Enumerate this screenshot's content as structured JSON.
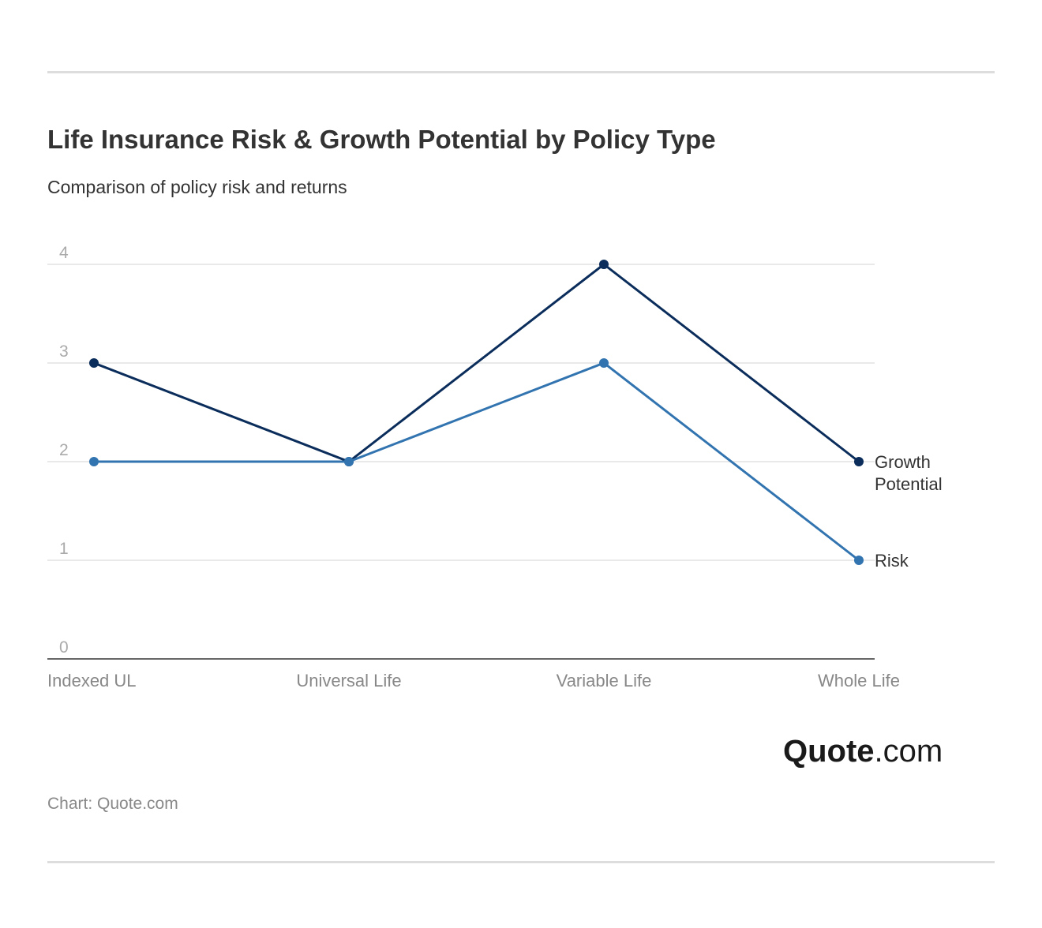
{
  "chart_data": {
    "type": "line",
    "title": "Life Insurance Risk & Growth Potential by Policy Type",
    "subtitle": "Comparison of policy risk and returns",
    "categories": [
      "Indexed UL",
      "Universal Life",
      "Variable Life",
      "Whole Life"
    ],
    "series": [
      {
        "name": "Growth Potential",
        "name_lines": [
          "Growth",
          "Potential"
        ],
        "values": [
          3,
          2,
          4,
          2
        ],
        "color": "#0b2d5b"
      },
      {
        "name": "Risk",
        "name_lines": [
          "Risk"
        ],
        "values": [
          2,
          2,
          3,
          1
        ],
        "color": "#3274b0"
      }
    ],
    "ylim": [
      0,
      4
    ],
    "yticks": [
      "0",
      "1",
      "2",
      "3",
      "4"
    ],
    "grid": true,
    "legend": "inline labels at right end of lines",
    "source": "Chart: Quote.com"
  },
  "logo": {
    "bold": "Quote",
    "regular": ".com"
  }
}
